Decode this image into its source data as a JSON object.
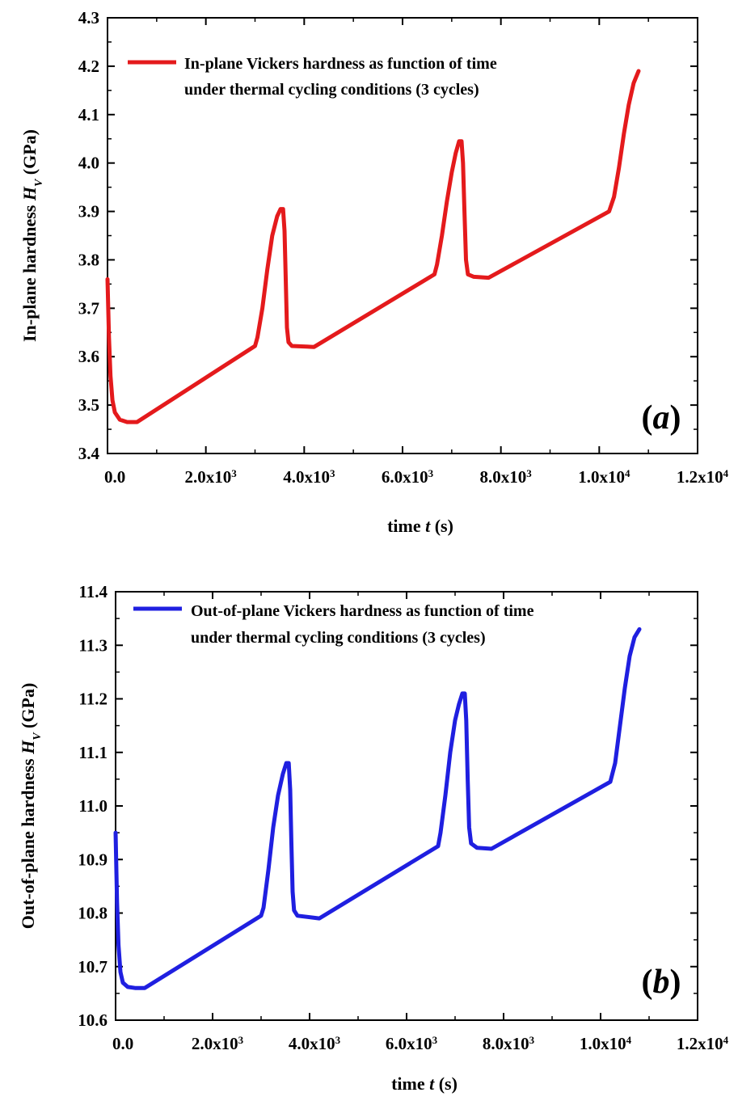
{
  "chart_data": [
    {
      "type": "line",
      "panel_label": "a",
      "xlabel_prefix": "time ",
      "xlabel_var": "t",
      "xlabel_suffix": " (s)",
      "ylabel_prefix": "In-plane hardness ",
      "ylabel_var": "H",
      "ylabel_sub": "V",
      "ylabel_suffix": " (GPa)",
      "xlim": [
        0,
        12000
      ],
      "ylim": [
        3.4,
        4.3
      ],
      "xticks": [
        {
          "value": 0,
          "mant": "0.0",
          "exp": ""
        },
        {
          "value": 2000,
          "mant": "2.0x10",
          "exp": "3"
        },
        {
          "value": 4000,
          "mant": "4.0x10",
          "exp": "3"
        },
        {
          "value": 6000,
          "mant": "6.0x10",
          "exp": "3"
        },
        {
          "value": 8000,
          "mant": "8.0x10",
          "exp": "3"
        },
        {
          "value": 10000,
          "mant": "1.0x10",
          "exp": "4"
        },
        {
          "value": 12000,
          "mant": "1.2x10",
          "exp": "4"
        }
      ],
      "yticks": [
        "3.4",
        "3.5",
        "3.6",
        "3.7",
        "3.8",
        "3.9",
        "4.0",
        "4.1",
        "4.2",
        "4.3"
      ],
      "legend_position": "top-left",
      "grid": false,
      "series": [
        {
          "name_line1": "In-plane Vickers hardness as function of time",
          "name_line2": "under thermal cycling conditions (3 cycles)",
          "color": "#e41a1c",
          "points": [
            [
              0,
              3.76
            ],
            [
              30,
              3.64
            ],
            [
              60,
              3.56
            ],
            [
              100,
              3.51
            ],
            [
              150,
              3.485
            ],
            [
              250,
              3.47
            ],
            [
              400,
              3.465
            ],
            [
              600,
              3.465
            ],
            [
              3000,
              3.622
            ],
            [
              3050,
              3.64
            ],
            [
              3150,
              3.7
            ],
            [
              3250,
              3.78
            ],
            [
              3350,
              3.85
            ],
            [
              3450,
              3.89
            ],
            [
              3520,
              3.905
            ],
            [
              3570,
              3.905
            ],
            [
              3600,
              3.86
            ],
            [
              3625,
              3.76
            ],
            [
              3650,
              3.66
            ],
            [
              3680,
              3.63
            ],
            [
              3750,
              3.622
            ],
            [
              4200,
              3.62
            ],
            [
              6650,
              3.77
            ],
            [
              6700,
              3.79
            ],
            [
              6800,
              3.85
            ],
            [
              6900,
              3.92
            ],
            [
              7000,
              3.98
            ],
            [
              7080,
              4.02
            ],
            [
              7150,
              4.045
            ],
            [
              7200,
              4.045
            ],
            [
              7230,
              4.0
            ],
            [
              7260,
              3.9
            ],
            [
              7290,
              3.8
            ],
            [
              7330,
              3.77
            ],
            [
              7450,
              3.765
            ],
            [
              7750,
              3.763
            ],
            [
              10200,
              3.9
            ],
            [
              10300,
              3.93
            ],
            [
              10400,
              3.99
            ],
            [
              10500,
              4.06
            ],
            [
              10600,
              4.12
            ],
            [
              10700,
              4.165
            ],
            [
              10800,
              4.19
            ]
          ]
        }
      ]
    },
    {
      "type": "line",
      "panel_label": "b",
      "xlabel_prefix": "time ",
      "xlabel_var": "t",
      "xlabel_suffix": " (s)",
      "ylabel_prefix": "Out-of-plane hardness ",
      "ylabel_var": "H",
      "ylabel_sub": "V",
      "ylabel_suffix": " (GPa)",
      "xlim": [
        0,
        12000
      ],
      "ylim": [
        10.6,
        11.4
      ],
      "xticks": [
        {
          "value": 0,
          "mant": "0.0",
          "exp": ""
        },
        {
          "value": 2000,
          "mant": "2.0x10",
          "exp": "3"
        },
        {
          "value": 4000,
          "mant": "4.0x10",
          "exp": "3"
        },
        {
          "value": 6000,
          "mant": "6.0x10",
          "exp": "3"
        },
        {
          "value": 8000,
          "mant": "8.0x10",
          "exp": "3"
        },
        {
          "value": 10000,
          "mant": "1.0x10",
          "exp": "4"
        },
        {
          "value": 12000,
          "mant": "1.2x10",
          "exp": "4"
        }
      ],
      "yticks": [
        "10.6",
        "10.7",
        "10.8",
        "10.9",
        "11.0",
        "11.1",
        "11.2",
        "11.3",
        "11.4"
      ],
      "legend_position": "top-left",
      "grid": false,
      "series": [
        {
          "name_line1": "Out-of-plane Vickers hardness as function of time",
          "name_line2": "under thermal cycling conditions (3 cycles)",
          "color": "#1f1fe0",
          "points": [
            [
              0,
              10.95
            ],
            [
              30,
              10.82
            ],
            [
              60,
              10.74
            ],
            [
              100,
              10.69
            ],
            [
              150,
              10.67
            ],
            [
              250,
              10.662
            ],
            [
              400,
              10.66
            ],
            [
              600,
              10.66
            ],
            [
              3000,
              10.795
            ],
            [
              3050,
              10.81
            ],
            [
              3150,
              10.88
            ],
            [
              3250,
              10.96
            ],
            [
              3350,
              11.02
            ],
            [
              3450,
              11.06
            ],
            [
              3520,
              11.08
            ],
            [
              3570,
              11.08
            ],
            [
              3600,
              11.03
            ],
            [
              3625,
              10.93
            ],
            [
              3650,
              10.84
            ],
            [
              3680,
              10.805
            ],
            [
              3750,
              10.795
            ],
            [
              4200,
              10.79
            ],
            [
              6650,
              10.925
            ],
            [
              6700,
              10.95
            ],
            [
              6800,
              11.02
            ],
            [
              6900,
              11.1
            ],
            [
              7000,
              11.16
            ],
            [
              7080,
              11.19
            ],
            [
              7150,
              11.21
            ],
            [
              7200,
              11.21
            ],
            [
              7230,
              11.16
            ],
            [
              7260,
              11.05
            ],
            [
              7290,
              10.96
            ],
            [
              7330,
              10.93
            ],
            [
              7450,
              10.922
            ],
            [
              7750,
              10.92
            ],
            [
              10200,
              11.045
            ],
            [
              10300,
              11.08
            ],
            [
              10400,
              11.15
            ],
            [
              10500,
              11.22
            ],
            [
              10600,
              11.28
            ],
            [
              10700,
              11.315
            ],
            [
              10800,
              11.33
            ]
          ]
        }
      ]
    }
  ]
}
